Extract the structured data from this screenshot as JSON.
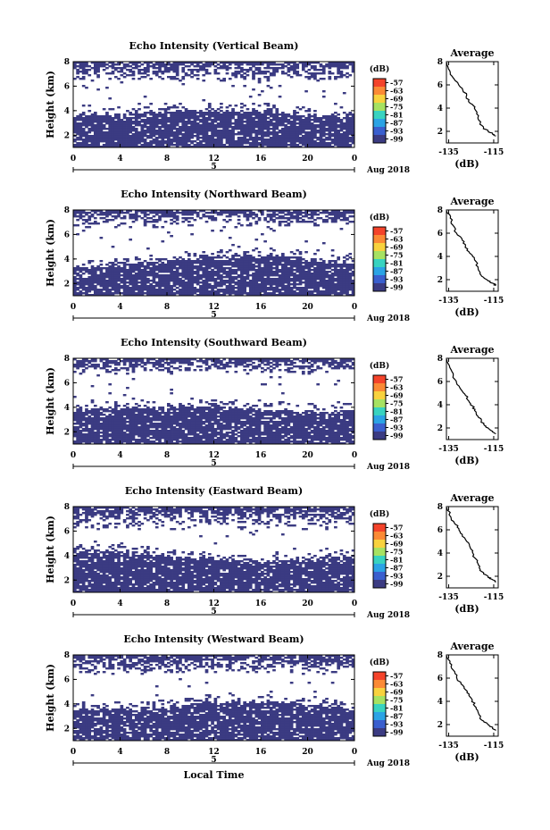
{
  "chart_data": [
    {
      "type": "heatmap",
      "title": "Echo Intensity (Vertical Beam)",
      "ylabel": "Height (km)",
      "ylim": [
        1,
        8
      ],
      "yticks": [
        "2",
        "4",
        "6",
        "8"
      ],
      "xticks": [
        "0",
        "4",
        "8",
        "12",
        "16",
        "20",
        "0"
      ],
      "xlim": [
        0,
        24
      ],
      "day_label": "5",
      "date_label": "Aug 2018",
      "colorbar": {
        "unit": "(dB)",
        "levels": [
          "-57",
          "-63",
          "-69",
          "-75",
          "-81",
          "-87",
          "-93",
          "-99"
        ],
        "colors": [
          "#f4432a",
          "#fb8a35",
          "#f8d23e",
          "#a6e262",
          "#38d3c0",
          "#2ba3e5",
          "#3a5fce",
          "#3b3b82"
        ]
      },
      "fill_color": "#3b3b82",
      "layers": {
        "lower_band_top_km": [
          3.6,
          4.0
        ],
        "upper_patches_from_km": 6.2
      },
      "seed": 11
    },
    {
      "type": "heatmap",
      "title": "Echo Intensity (Northward Beam)",
      "ylabel": "Height (km)",
      "ylim": [
        1,
        8
      ],
      "yticks": [
        "2",
        "4",
        "6",
        "8"
      ],
      "xticks": [
        "0",
        "4",
        "8",
        "12",
        "16",
        "20",
        "0"
      ],
      "xlim": [
        0,
        24
      ],
      "day_label": "5",
      "date_label": "Aug 2018",
      "colorbar": {
        "unit": "(dB)",
        "levels": [
          "-57",
          "-63",
          "-69",
          "-75",
          "-81",
          "-87",
          "-93",
          "-99"
        ],
        "colors": [
          "#f4432a",
          "#fb8a35",
          "#f8d23e",
          "#a6e262",
          "#38d3c0",
          "#2ba3e5",
          "#3a5fce",
          "#3b3b82"
        ]
      },
      "fill_color": "#3b3b82",
      "layers": {
        "lower_band_top_km": [
          3.4,
          4.3
        ],
        "upper_patches_from_km": 6.4
      },
      "seed": 23
    },
    {
      "type": "heatmap",
      "title": "Echo Intensity (Southward Beam)",
      "ylabel": "Height (km)",
      "ylim": [
        1,
        8
      ],
      "yticks": [
        "2",
        "4",
        "6",
        "8"
      ],
      "xticks": [
        "0",
        "4",
        "8",
        "12",
        "16",
        "20",
        "0"
      ],
      "xlim": [
        0,
        24
      ],
      "day_label": "5",
      "date_label": "Aug 2018",
      "colorbar": {
        "unit": "(dB)",
        "levels": [
          "-57",
          "-63",
          "-69",
          "-75",
          "-81",
          "-87",
          "-93",
          "-99"
        ],
        "colors": [
          "#f4432a",
          "#fb8a35",
          "#f8d23e",
          "#a6e262",
          "#38d3c0",
          "#2ba3e5",
          "#3a5fce",
          "#3b3b82"
        ]
      },
      "fill_color": "#3b3b82",
      "layers": {
        "lower_band_top_km": [
          3.6,
          4.1
        ],
        "upper_patches_from_km": 6.6
      },
      "seed": 37
    },
    {
      "type": "heatmap",
      "title": "Echo Intensity (Eastward Beam)",
      "ylabel": "Height (km)",
      "ylim": [
        1,
        8
      ],
      "yticks": [
        "2",
        "4",
        "6",
        "8"
      ],
      "xticks": [
        "0",
        "4",
        "8",
        "12",
        "16",
        "20",
        "0"
      ],
      "xlim": [
        0,
        24
      ],
      "day_label": "5",
      "date_label": "Aug 2018",
      "colorbar": {
        "unit": "(dB)",
        "levels": [
          "-57",
          "-63",
          "-69",
          "-75",
          "-81",
          "-87",
          "-93",
          "-99"
        ],
        "colors": [
          "#f4432a",
          "#fb8a35",
          "#f8d23e",
          "#a6e262",
          "#38d3c0",
          "#2ba3e5",
          "#3a5fce",
          "#3b3b82"
        ]
      },
      "fill_color": "#3b3b82",
      "layers": {
        "lower_band_top_km": [
          3.5,
          4.3
        ],
        "upper_patches_from_km": 6.0
      },
      "seed": 51
    },
    {
      "type": "heatmap",
      "title": "Echo Intensity (Westward Beam)",
      "ylabel": "Height (km)",
      "ylim": [
        1,
        8
      ],
      "yticks": [
        "2",
        "4",
        "6",
        "8"
      ],
      "xticks": [
        "0",
        "4",
        "8",
        "12",
        "16",
        "20",
        "0"
      ],
      "xlim": [
        0,
        24
      ],
      "day_label": "5",
      "date_label": "Aug 2018",
      "xlabel": "Local Time",
      "colorbar": {
        "unit": "(dB)",
        "levels": [
          "-57",
          "-63",
          "-69",
          "-75",
          "-81",
          "-87",
          "-93",
          "-99"
        ],
        "colors": [
          "#f4432a",
          "#fb8a35",
          "#f8d23e",
          "#a6e262",
          "#38d3c0",
          "#2ba3e5",
          "#3a5fce",
          "#3b3b82"
        ]
      },
      "fill_color": "#3b3b82",
      "layers": {
        "lower_band_top_km": [
          3.5,
          4.2
        ],
        "upper_patches_from_km": 6.3
      },
      "seed": 67
    },
    {
      "type": "line",
      "title": "Average",
      "xlabel": "(dB)",
      "xlim": [
        -136,
        -113
      ],
      "xticks": [
        "-135",
        "-115"
      ],
      "ylim": [
        1,
        8
      ],
      "yticks": [
        "2",
        "4",
        "6",
        "8"
      ],
      "series": [
        {
          "x": [
            -135.8,
            -134.5,
            -133,
            -131,
            -129,
            -127,
            -126.2,
            -124,
            -123,
            -122,
            -121,
            -119.5,
            -117.5,
            -115.5,
            -114
          ],
          "y": [
            7.9,
            7.2,
            6.6,
            6.2,
            5.7,
            5.1,
            4.6,
            4.2,
            3.8,
            3.2,
            2.7,
            2.3,
            2.0,
            1.8,
            1.6
          ]
        }
      ]
    },
    {
      "type": "line",
      "title": "Average",
      "xlabel": "(dB)",
      "xlim": [
        -136,
        -113
      ],
      "xticks": [
        "-135",
        "-115"
      ],
      "ylim": [
        1,
        8
      ],
      "yticks": [
        "2",
        "4",
        "6",
        "8"
      ],
      "series": [
        {
          "x": [
            -135.8,
            -134.3,
            -133.2,
            -131.5,
            -129,
            -127.5,
            -126,
            -124.5,
            -123.5,
            -122,
            -121,
            -119.5,
            -117.5,
            -115.5,
            -114
          ],
          "y": [
            7.9,
            7.3,
            6.7,
            6.0,
            5.4,
            4.9,
            4.4,
            4.1,
            3.7,
            3.1,
            2.6,
            2.2,
            1.9,
            1.7,
            1.5
          ]
        }
      ]
    },
    {
      "type": "line",
      "title": "Average",
      "xlabel": "(dB)",
      "xlim": [
        -136,
        -113
      ],
      "xticks": [
        "-135",
        "-115"
      ],
      "ylim": [
        1,
        8
      ],
      "yticks": [
        "2",
        "4",
        "6",
        "8"
      ],
      "series": [
        {
          "x": [
            -135.8,
            -134.5,
            -133,
            -131.5,
            -129.5,
            -127.5,
            -126,
            -124.5,
            -123.5,
            -122,
            -120.5,
            -119,
            -117.5,
            -115.5,
            -114
          ],
          "y": [
            7.9,
            7.2,
            6.5,
            5.9,
            5.3,
            4.8,
            4.3,
            3.9,
            3.5,
            3.0,
            2.6,
            2.2,
            2.0,
            1.7,
            1.5
          ]
        }
      ]
    },
    {
      "type": "line",
      "title": "Average",
      "xlabel": "(dB)",
      "xlim": [
        -136,
        -113
      ],
      "xticks": [
        "-135",
        "-115"
      ],
      "ylim": [
        1,
        8
      ],
      "yticks": [
        "2",
        "4",
        "6",
        "8"
      ],
      "series": [
        {
          "x": [
            -135.8,
            -134,
            -132.5,
            -130.5,
            -129,
            -127,
            -125.5,
            -124.5,
            -123.5,
            -122,
            -121,
            -119.5,
            -117.5,
            -115.5,
            -114
          ],
          "y": [
            7.9,
            7.1,
            6.6,
            6.1,
            5.6,
            5.0,
            4.5,
            4.1,
            3.6,
            3.1,
            2.6,
            2.2,
            1.9,
            1.7,
            1.5
          ]
        }
      ]
    },
    {
      "type": "line",
      "title": "Average",
      "xlabel": "(dB)",
      "xlim": [
        -136,
        -113
      ],
      "xticks": [
        "-135",
        "-115"
      ],
      "ylim": [
        1,
        8
      ],
      "yticks": [
        "2",
        "4",
        "6",
        "8"
      ],
      "series": [
        {
          "x": [
            -135.8,
            -134.5,
            -133,
            -131.5,
            -129.5,
            -127.5,
            -126,
            -124.5,
            -123.5,
            -122,
            -121,
            -119.5,
            -117.5,
            -115.5,
            -114
          ],
          "y": [
            7.9,
            7.3,
            6.7,
            6.1,
            5.5,
            5.0,
            4.5,
            4.1,
            3.6,
            3.1,
            2.6,
            2.3,
            2.0,
            1.7,
            1.5
          ]
        }
      ]
    }
  ]
}
